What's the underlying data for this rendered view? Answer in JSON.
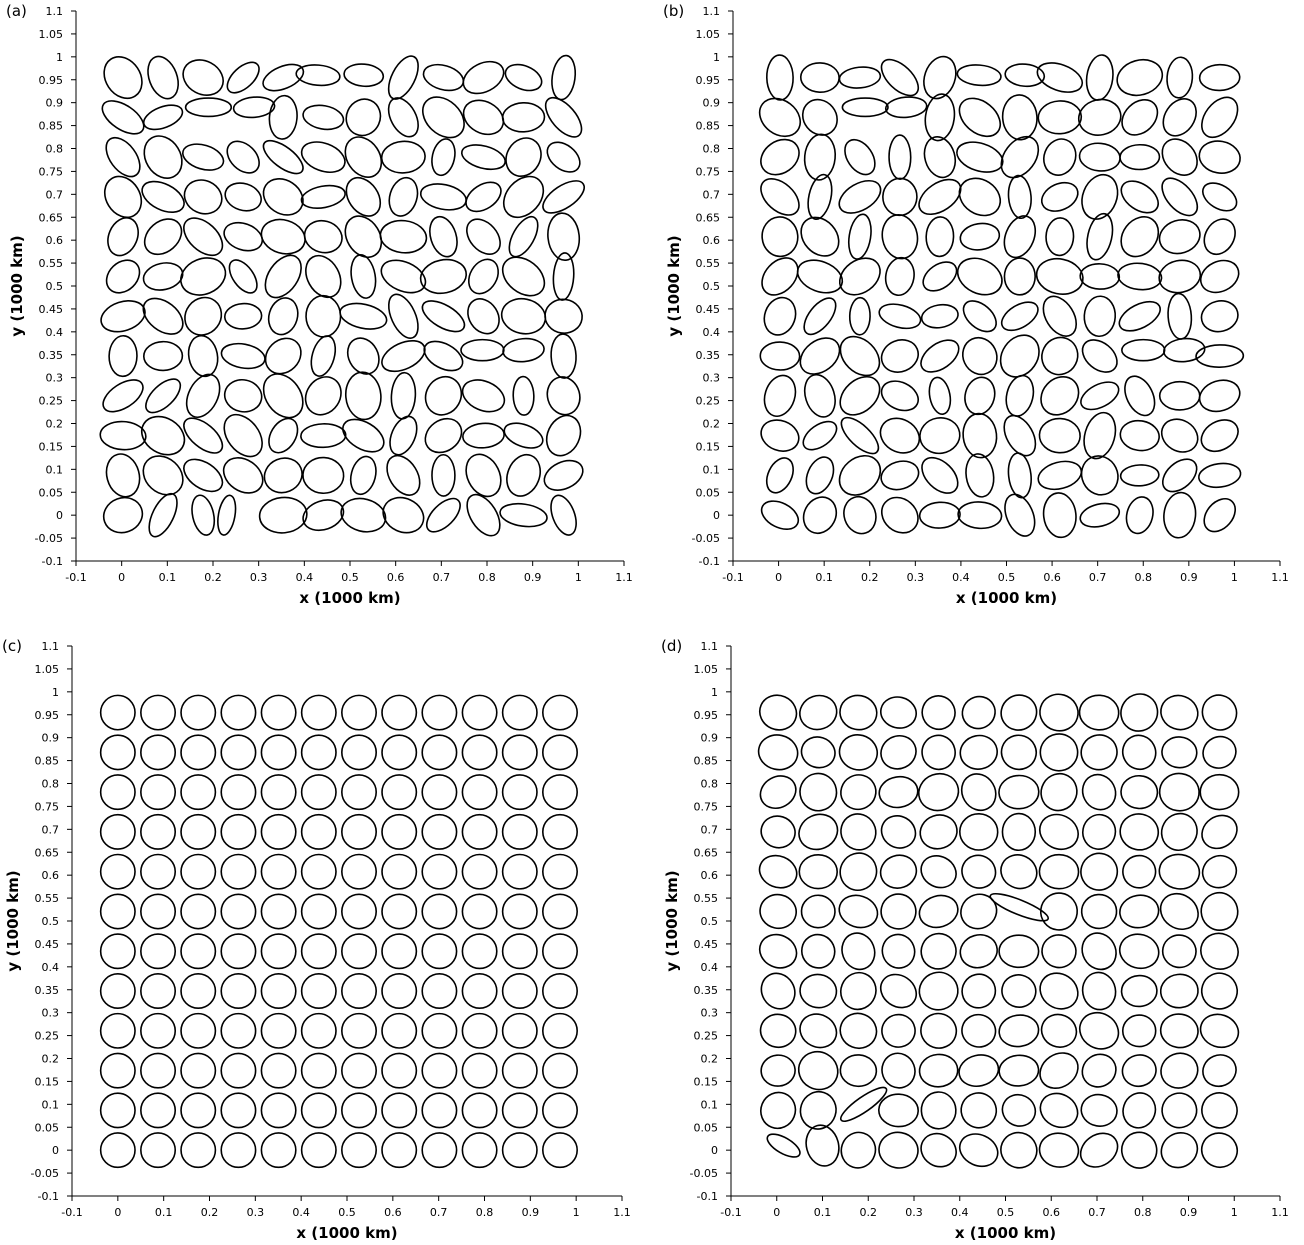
{
  "chart_data": [
    {
      "type": "scatter",
      "panel_label": "(a)",
      "xlabel": "x (1000 km)",
      "ylabel": "y (1000 km)",
      "xlim": [
        -0.1,
        1.1
      ],
      "ylim": [
        -0.1,
        1.1
      ],
      "xticks": [
        "-0.1",
        "0",
        "0.1",
        "0.2",
        "0.3",
        "0.4",
        "0.5",
        "0.6",
        "0.7",
        "0.8",
        "0.9",
        "1",
        "1.1"
      ],
      "yticks": [
        "-0.1",
        "-0.05",
        "0",
        "0.05",
        "0.1",
        "0.15",
        "0.2",
        "0.25",
        "0.3",
        "0.35",
        "0.4",
        "0.45",
        "0.5",
        "0.55",
        "0.6",
        "0.65",
        "0.7",
        "0.75",
        "0.8",
        "0.85",
        "0.9",
        "0.95",
        "1",
        "1.05",
        "1.1"
      ],
      "grid": false,
      "mode": "random",
      "seed": 7,
      "ellipses": [
        {
          "x": 0.19,
          "y": 0.89,
          "a": 0.05,
          "b": 0.02,
          "angle": 0
        },
        {
          "x": 0.29,
          "y": 0.89,
          "a": 0.045,
          "b": 0.022,
          "angle": 5
        },
        {
          "x": 0.43,
          "y": 0.96,
          "a": 0.048,
          "b": 0.022,
          "angle": -5
        },
        {
          "x": 0.53,
          "y": 0.96,
          "a": 0.043,
          "b": 0.024,
          "angle": -5
        },
        {
          "x": 0.79,
          "y": 0.36,
          "a": 0.047,
          "b": 0.023,
          "angle": 0
        },
        {
          "x": 0.88,
          "y": 0.36,
          "a": 0.045,
          "b": 0.025,
          "angle": 5
        },
        {
          "x": 0.23,
          "y": 0.0,
          "a": 0.044,
          "b": 0.018,
          "angle": 80
        }
      ]
    },
    {
      "type": "scatter",
      "panel_label": "(b)",
      "xlabel": "x (1000 km)",
      "ylabel": "y (1000 km)",
      "xlim": [
        -0.1,
        1.1
      ],
      "ylim": [
        -0.1,
        1.1
      ],
      "xticks": [
        "-0.1",
        "0",
        "0.1",
        "0.2",
        "0.3",
        "0.4",
        "0.5",
        "0.6",
        "0.7",
        "0.8",
        "0.9",
        "1",
        "1.1"
      ],
      "yticks": [
        "-0.1",
        "-0.05",
        "0",
        "0.05",
        "0.1",
        "0.15",
        "0.2",
        "0.25",
        "0.3",
        "0.35",
        "0.4",
        "0.45",
        "0.5",
        "0.55",
        "0.6",
        "0.65",
        "0.7",
        "0.75",
        "0.8",
        "0.85",
        "0.9",
        "0.95",
        "1",
        "1.05",
        "1.1"
      ],
      "grid": false,
      "mode": "random",
      "seed": 11,
      "ellipses": [
        {
          "x": 0.19,
          "y": 0.89,
          "a": 0.05,
          "b": 0.02,
          "angle": 0
        },
        {
          "x": 0.28,
          "y": 0.89,
          "a": 0.045,
          "b": 0.022,
          "angle": 5
        },
        {
          "x": 0.44,
          "y": 0.96,
          "a": 0.048,
          "b": 0.022,
          "angle": -5
        },
        {
          "x": 0.54,
          "y": 0.96,
          "a": 0.043,
          "b": 0.024,
          "angle": -5
        },
        {
          "x": 0.8,
          "y": 0.36,
          "a": 0.047,
          "b": 0.023,
          "angle": 0
        },
        {
          "x": 0.89,
          "y": 0.36,
          "a": 0.045,
          "b": 0.025,
          "angle": 5
        }
      ]
    },
    {
      "type": "scatter",
      "panel_label": "(c)",
      "xlabel": "x (1000 km)",
      "ylabel": "y (1000 km)",
      "xlim": [
        -0.1,
        1.1
      ],
      "ylim": [
        -0.1,
        1.1
      ],
      "xticks": [
        "-0.1",
        "0",
        "0.1",
        "0.2",
        "0.3",
        "0.4",
        "0.5",
        "0.6",
        "0.7",
        "0.8",
        "0.9",
        "1",
        "1.1"
      ],
      "yticks": [
        "-0.1",
        "-0.05",
        "0",
        "0.05",
        "0.1",
        "0.15",
        "0.2",
        "0.25",
        "0.3",
        "0.35",
        "0.4",
        "0.45",
        "0.5",
        "0.55",
        "0.6",
        "0.65",
        "0.7",
        "0.75",
        "0.8",
        "0.85",
        "0.9",
        "0.95",
        "1",
        "1.05",
        "1.1"
      ],
      "grid": false,
      "mode": "circles",
      "seed": 3,
      "ellipses": []
    },
    {
      "type": "scatter",
      "panel_label": "(d)",
      "xlabel": "x (1000 km)",
      "ylabel": "y (1000 km)",
      "xlim": [
        -0.1,
        1.1
      ],
      "ylim": [
        -0.1,
        1.1
      ],
      "xticks": [
        "-0.1",
        "0",
        "0.1",
        "0.2",
        "0.3",
        "0.4",
        "0.5",
        "0.6",
        "0.7",
        "0.8",
        "0.9",
        "1",
        "1.1"
      ],
      "yticks": [
        "-0.1",
        "-0.05",
        "0",
        "0.05",
        "0.1",
        "0.15",
        "0.2",
        "0.25",
        "0.3",
        "0.35",
        "0.4",
        "0.45",
        "0.5",
        "0.55",
        "0.6",
        "0.65",
        "0.7",
        "0.75",
        "0.8",
        "0.85",
        "0.9",
        "0.95",
        "1",
        "1.05",
        "1.1"
      ],
      "grid": false,
      "mode": "near-circles",
      "seed": 5,
      "ellipses": [
        {
          "x": 0.53,
          "y": 0.53,
          "a": 0.068,
          "b": 0.016,
          "angle": -22
        },
        {
          "x": 0.19,
          "y": 0.1,
          "a": 0.06,
          "b": 0.016,
          "angle": 35
        },
        {
          "x": 0.015,
          "y": 0.01,
          "a": 0.04,
          "b": 0.017,
          "angle": -30
        },
        {
          "x": 0.1,
          "y": 0.01,
          "a": 0.035,
          "b": 0.045,
          "angle": 15
        }
      ]
    }
  ]
}
